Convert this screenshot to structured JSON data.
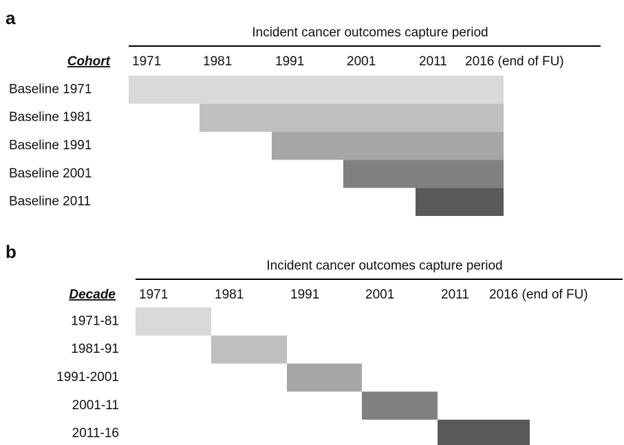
{
  "panels": [
    {
      "letter": "a",
      "header": "Incident cancer outcomes capture period",
      "row_title": "Cohort",
      "xticks": [
        1971,
        1981,
        1991,
        2001,
        2011,
        {
          "value": 2016,
          "label": "2016 (end of FU)"
        }
      ],
      "rows": [
        {
          "label": "Baseline 1971",
          "start": 1971,
          "end": 2016,
          "color": "#d9d9d9"
        },
        {
          "label": "Baseline 1981",
          "start": 1981,
          "end": 2016,
          "color": "#bfbfbf"
        },
        {
          "label": "Baseline 1991",
          "start": 1991,
          "end": 2016,
          "color": "#a6a6a6"
        },
        {
          "label": "Baseline 2001",
          "start": 2001,
          "end": 2016,
          "color": "#808080"
        },
        {
          "label": "Baseline 2011",
          "start": 2011,
          "end": 2016,
          "color": "#595959"
        }
      ]
    },
    {
      "letter": "b",
      "header": "Incident cancer outcomes capture period",
      "row_title": "Decade",
      "xticks": [
        1971,
        1981,
        1991,
        2001,
        2011,
        {
          "value": 2016,
          "label": "2016 (end of FU)"
        }
      ],
      "rows": [
        {
          "label": "1971-81",
          "start": 1971,
          "end": 1981,
          "color": "#d9d9d9"
        },
        {
          "label": "1981-91",
          "start": 1981,
          "end": 1991,
          "color": "#bfbfbf"
        },
        {
          "label": "1991-2001",
          "start": 1991,
          "end": 2001,
          "color": "#a6a6a6"
        },
        {
          "label": "2001-11",
          "start": 2001,
          "end": 2011,
          "color": "#808080"
        },
        {
          "label": "2011-16",
          "start": 2011,
          "end": 2016,
          "color": "#595959"
        }
      ]
    }
  ]
}
